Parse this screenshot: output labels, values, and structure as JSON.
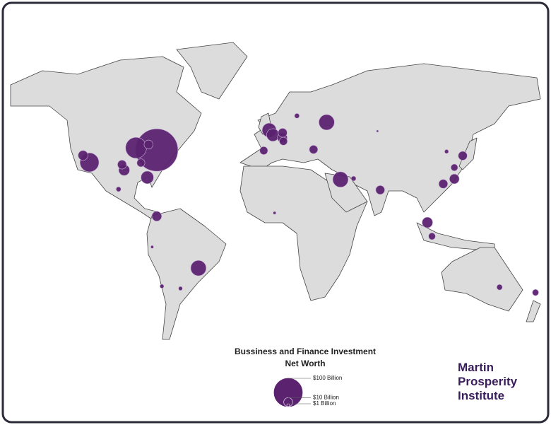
{
  "title": [
    "Bussiness and Finance Investment",
    "Net Worth"
  ],
  "logo": [
    "Martin",
    "Prosperity",
    "Institute"
  ],
  "color": "#5b2270",
  "points": [
    {
      "lat": 40.7,
      "lon": -74.0,
      "value": 225
    },
    {
      "lat": 41.9,
      "lon": -87.6,
      "value": 55
    },
    {
      "lat": 34.0,
      "lon": -118.2,
      "value": 45
    },
    {
      "lat": 55.8,
      "lon": 37.6,
      "value": 30
    },
    {
      "lat": 24.7,
      "lon": 46.7,
      "value": 30
    },
    {
      "lat": -23.5,
      "lon": -46.6,
      "value": 30
    },
    {
      "lat": 51.5,
      "lon": -0.1,
      "value": 25
    },
    {
      "lat": 48.9,
      "lon": 2.3,
      "value": 20
    },
    {
      "lat": 25.8,
      "lon": -80.2,
      "value": 20
    },
    {
      "lat": 29.8,
      "lon": -95.4,
      "value": 15
    },
    {
      "lat": 1.3,
      "lon": 103.8,
      "value": 14
    },
    {
      "lat": 37.8,
      "lon": -122.4,
      "value": 12
    },
    {
      "lat": 4.7,
      "lon": -74.0,
      "value": 12
    },
    {
      "lat": 47.4,
      "lon": 8.5,
      "value": 12
    },
    {
      "lat": 25.0,
      "lon": 121.5,
      "value": 12
    },
    {
      "lat": 32.8,
      "lon": -96.8,
      "value": 10
    },
    {
      "lat": 43.7,
      "lon": -79.4,
      "value": 10
    },
    {
      "lat": 50.1,
      "lon": 8.7,
      "value": 10
    },
    {
      "lat": 19.0,
      "lon": 72.8,
      "value": 10
    },
    {
      "lat": 37.6,
      "lon": 127.0,
      "value": 10
    },
    {
      "lat": 22.3,
      "lon": 114.2,
      "value": 10
    },
    {
      "lat": 41.0,
      "lon": 29.0,
      "value": 9
    },
    {
      "lat": 33.7,
      "lon": -84.4,
      "value": 8
    },
    {
      "lat": 40.4,
      "lon": -3.7,
      "value": 8
    },
    {
      "lat": 45.5,
      "lon": 9.2,
      "value": 8
    },
    {
      "lat": 31.2,
      "lon": 121.5,
      "value": 6
    },
    {
      "lat": -6.2,
      "lon": 106.8,
      "value": 6
    },
    {
      "lat": -36.8,
      "lon": 174.8,
      "value": 5
    },
    {
      "lat": -33.9,
      "lon": 151.2,
      "value": 4
    },
    {
      "lat": 19.4,
      "lon": -99.1,
      "value": 3
    },
    {
      "lat": 59.3,
      "lon": 18.1,
      "value": 3
    },
    {
      "lat": 25.2,
      "lon": 55.3,
      "value": 3
    },
    {
      "lat": -33.4,
      "lon": -70.6,
      "value": 2
    },
    {
      "lat": -34.6,
      "lon": -58.4,
      "value": 2
    },
    {
      "lat": 39.9,
      "lon": 116.4,
      "value": 2
    },
    {
      "lat": -12.0,
      "lon": -77.0,
      "value": 1
    },
    {
      "lat": 6.5,
      "lon": 3.4,
      "value": 1
    },
    {
      "lat": 51.0,
      "lon": 71.0,
      "value": 0.5
    }
  ],
  "legend": [
    {
      "value": 100,
      "label": "$100 Billion"
    },
    {
      "value": 10,
      "label": "$10 Billion"
    },
    {
      "value": 1,
      "label": "$1 Billion"
    }
  ]
}
